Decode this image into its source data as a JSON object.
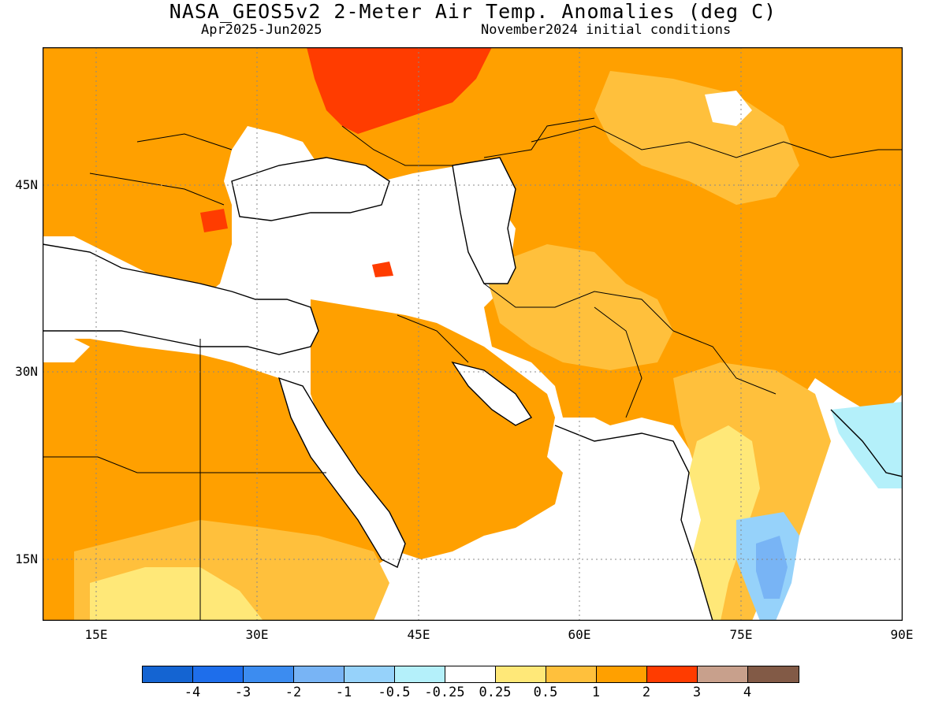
{
  "title": "NASA_GEOS5v2 2-Meter Air Temp. Anomalies (deg C)",
  "subtitle_left": "Apr2025-Jun2025",
  "subtitle_right": "November2024 initial conditions",
  "lat_labels": [
    "45N",
    "30N",
    "15N"
  ],
  "lon_labels": [
    "15E",
    "30E",
    "45E",
    "60E",
    "75E",
    "90E"
  ],
  "colorbar": {
    "colors": [
      "#1464d2",
      "#1e6eeb",
      "#3c8cf0",
      "#78b4f5",
      "#96d2fa",
      "#b4f0fa",
      "#ffffff",
      "#ffe878",
      "#ffc03c",
      "#ffa000",
      "#ff3c00",
      "#c8a08c",
      "#825a46"
    ],
    "labels": [
      "-4",
      "-3",
      "-2",
      "-1",
      "-0.5",
      "-0.25",
      "0.25",
      "0.5",
      "1",
      "2",
      "3",
      "4"
    ]
  },
  "map_colors": {
    "land_warm_2": "#ffa000",
    "land_warm_1": "#ffc03c",
    "land_warm_05": "#ffe878",
    "land_hot_3": "#ff3c00",
    "cool_05": "#b4f0fa",
    "cool_1": "#96d2fa",
    "cool_2": "#78b4f5",
    "neutral": "#ffffff"
  }
}
